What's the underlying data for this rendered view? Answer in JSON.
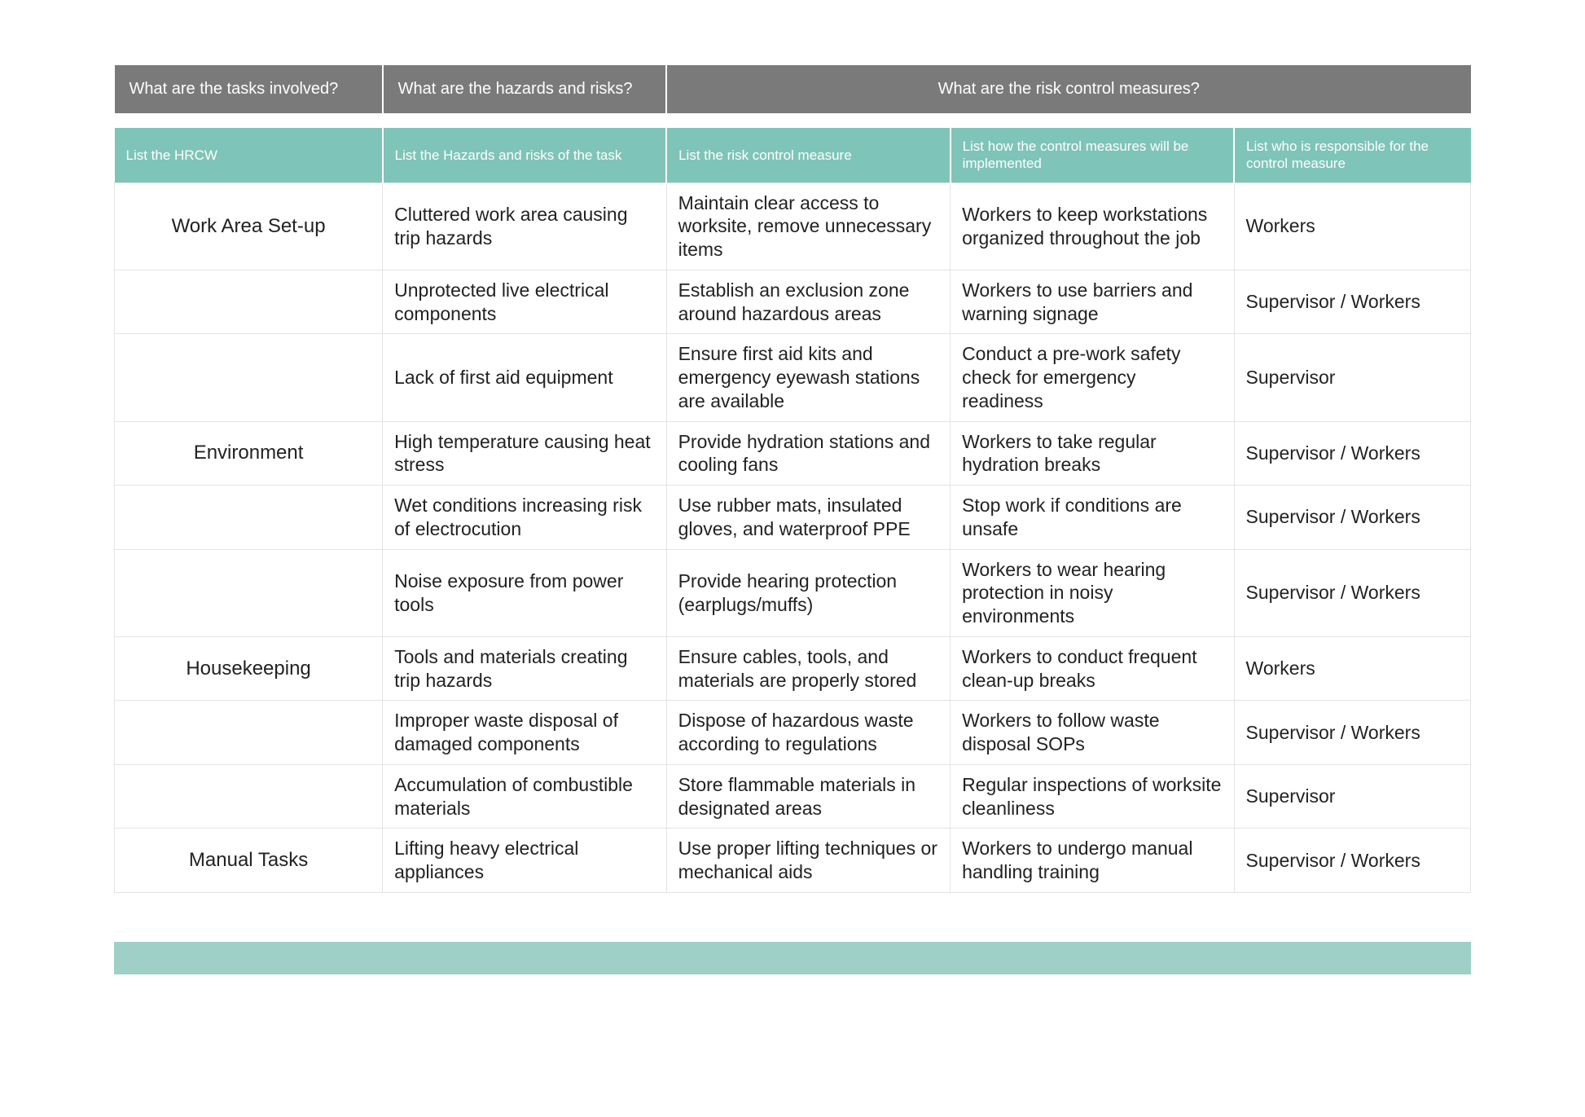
{
  "colors": {
    "grey_header": "#7a7a7a",
    "teal": "#7fc4b8",
    "teal_bar": "#9fd0c7",
    "border": "#e4e4e4",
    "text": "#222222",
    "background": "#ffffff"
  },
  "top_headers": {
    "tasks": "What are the tasks involved?",
    "hazards": "What are the hazards and risks?",
    "controls": "What are the risk control measures?"
  },
  "sub_headers": {
    "hrcw": "List the HRCW",
    "hazards": "List the Hazards and risks of the task",
    "control": "List the risk control measure",
    "implement": "List how the control measures will be implemented",
    "responsible": "List who is responsible for the control measure"
  },
  "rows": [
    {
      "task": "Work Area Set-up",
      "hazard": "Cluttered work area causing trip hazards",
      "control": "Maintain clear access to worksite, remove unnecessary items",
      "implement": "Workers to keep workstations organized throughout the job",
      "responsible": "Workers"
    },
    {
      "task": "",
      "hazard": "Unprotected live electrical components",
      "control": "Establish an exclusion zone around hazardous areas",
      "implement": "Workers to use barriers and warning signage",
      "responsible": "Supervisor / Workers"
    },
    {
      "task": "",
      "hazard": "Lack of first aid equipment",
      "control": "Ensure first aid kits and emergency eyewash stations are available",
      "implement": "Conduct a pre-work safety check for emergency readiness",
      "responsible": "Supervisor"
    },
    {
      "task": "Environment",
      "hazard": "High temperature causing heat stress",
      "control": "Provide hydration stations and cooling fans",
      "implement": "Workers to take regular hydration breaks",
      "responsible": "Supervisor / Workers"
    },
    {
      "task": "",
      "hazard": "Wet conditions increasing risk of electrocution",
      "control": "Use rubber mats, insulated gloves, and waterproof PPE",
      "implement": "Stop work if conditions are unsafe",
      "responsible": "Supervisor / Workers"
    },
    {
      "task": "",
      "hazard": "Noise exposure from power tools",
      "control": "Provide hearing protection (earplugs/muffs)",
      "implement": "Workers to wear hearing protection in noisy environments",
      "responsible": "Supervisor / Workers"
    },
    {
      "task": "Housekeeping",
      "hazard": "Tools and materials creating trip hazards",
      "control": "Ensure cables, tools, and materials are properly stored",
      "implement": "Workers to conduct frequent clean-up breaks",
      "responsible": "Workers"
    },
    {
      "task": "",
      "hazard": "Improper waste disposal of damaged components",
      "control": "Dispose of hazardous waste according to regulations",
      "implement": "Workers to follow waste disposal SOPs",
      "responsible": "Supervisor / Workers"
    },
    {
      "task": "",
      "hazard": "Accumulation of combustible materials",
      "control": "Store flammable materials in designated areas",
      "implement": "Regular inspections of worksite cleanliness",
      "responsible": "Supervisor"
    },
    {
      "task": "Manual Tasks",
      "hazard": "Lifting heavy electrical appliances",
      "control": "Use proper lifting techniques or mechanical aids",
      "implement": "Workers to undergo manual handling training",
      "responsible": "Supervisor / Workers"
    }
  ]
}
